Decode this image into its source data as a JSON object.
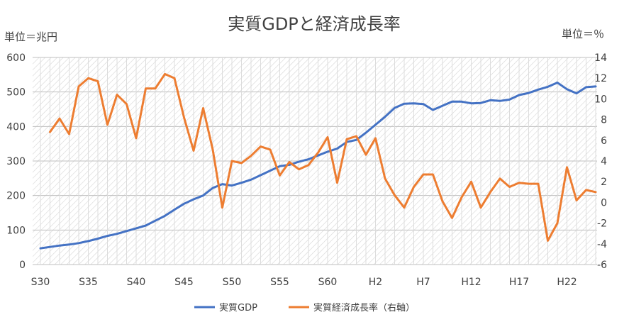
{
  "chart_data": {
    "type": "line",
    "title": "実質GDPと経済成長率",
    "left_unit": "単位＝兆円",
    "right_unit": "単位＝％",
    "grid": true,
    "legend_position": "bottom",
    "x_tick_labels": [
      "S30",
      "S35",
      "S40",
      "S45",
      "S50",
      "S55",
      "S60",
      "H2",
      "H7",
      "H12",
      "H17",
      "H22"
    ],
    "x_tick_years": [
      1955,
      1960,
      1965,
      1970,
      1975,
      1980,
      1985,
      1990,
      1995,
      2000,
      2005,
      2010
    ],
    "left_axis": {
      "min": 0,
      "max": 600,
      "ticks": [
        0,
        100,
        200,
        300,
        400,
        500,
        600
      ]
    },
    "right_axis": {
      "min": -6,
      "max": 14,
      "ticks": [
        -6,
        -4,
        -2,
        0,
        2,
        4,
        6,
        8,
        10,
        12,
        14
      ]
    },
    "series": [
      {
        "name": "実質GDP",
        "axis": "left",
        "color": "#4472C4",
        "x": [
          1955,
          1956,
          1957,
          1958,
          1959,
          1960,
          1961,
          1962,
          1963,
          1964,
          1965,
          1966,
          1967,
          1968,
          1969,
          1970,
          1971,
          1972,
          1973,
          1974,
          1975,
          1976,
          1977,
          1978,
          1979,
          1980,
          1981,
          1982,
          1983,
          1984,
          1985,
          1986,
          1987,
          1988,
          1989,
          1990,
          1991,
          1992,
          1993,
          1994,
          1995,
          1996,
          1997,
          1998,
          1999,
          2000,
          2001,
          2002,
          2003,
          2004,
          2005,
          2006,
          2007,
          2008,
          2009,
          2010,
          2011,
          2012,
          2013
        ],
        "values": [
          47,
          51,
          55,
          58,
          62,
          68,
          75,
          83,
          89,
          97,
          105,
          113,
          127,
          141,
          159,
          176,
          189,
          200,
          222,
          233,
          229,
          237,
          246,
          259,
          272,
          285,
          289,
          298,
          305,
          316,
          327,
          336,
          355,
          361,
          382,
          405,
          428,
          454,
          466,
          467,
          465,
          448,
          460,
          472,
          472,
          467,
          468,
          476,
          474,
          478,
          491,
          497,
          507,
          515,
          527,
          508,
          496,
          514,
          516
        ]
      },
      {
        "name": "実質経済成長率（右軸）",
        "axis": "right",
        "color": "#ED7D31",
        "x": [
          1956,
          1957,
          1958,
          1959,
          1960,
          1961,
          1962,
          1963,
          1964,
          1965,
          1966,
          1967,
          1968,
          1969,
          1970,
          1971,
          1972,
          1973,
          1974,
          1975,
          1976,
          1977,
          1978,
          1979,
          1980,
          1981,
          1982,
          1983,
          1984,
          1985,
          1986,
          1987,
          1988,
          1989,
          1990,
          1991,
          1992,
          1993,
          1994,
          1995,
          1996,
          1997,
          1998,
          1999,
          2000,
          2001,
          2002,
          2003,
          2004,
          2005,
          2006,
          2007,
          2008,
          2009,
          2010,
          2011,
          2012,
          2013
        ],
        "values": [
          6.8,
          8.1,
          6.6,
          11.2,
          12.0,
          11.7,
          7.5,
          10.4,
          9.5,
          6.2,
          11.0,
          11.0,
          12.4,
          12.0,
          8.2,
          5.0,
          9.1,
          5.1,
          -0.5,
          4.0,
          3.8,
          4.5,
          5.4,
          5.1,
          2.6,
          3.9,
          3.2,
          3.6,
          4.8,
          6.3,
          1.9,
          6.1,
          6.4,
          4.6,
          6.2,
          2.3,
          0.7,
          -0.5,
          1.5,
          2.7,
          2.7,
          0.1,
          -1.5,
          0.5,
          2.0,
          -0.5,
          1.0,
          2.3,
          1.5,
          1.9,
          1.8,
          1.8,
          -3.7,
          -2.0,
          3.4,
          0.2,
          1.2,
          1.0
        ]
      }
    ]
  }
}
